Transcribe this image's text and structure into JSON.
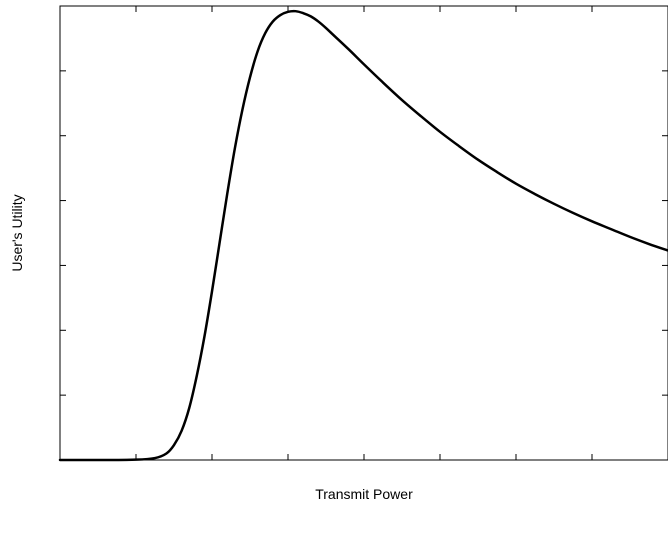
{
  "chart_data": {
    "type": "line",
    "title": "",
    "xlabel": "Transmit Power",
    "ylabel": "User's Utility",
    "xlim": [
      0,
      8
    ],
    "ylim": [
      0,
      7
    ],
    "x_tick_labels_shown": false,
    "y_tick_labels_shown": false,
    "grid": false,
    "legend": "none",
    "line_color": "#000000",
    "series": [
      {
        "x": [
          0,
          0.5,
          1.0,
          1.25,
          1.4,
          1.5,
          1.6,
          1.7,
          1.8,
          1.9,
          2.0,
          2.1,
          2.2,
          2.3,
          2.4,
          2.5,
          2.6,
          2.7,
          2.8,
          2.9,
          3.0,
          3.1,
          3.2,
          3.3,
          3.4,
          3.5,
          3.6,
          3.8,
          4.0,
          4.25,
          4.5,
          4.75,
          5.0,
          5.25,
          5.5,
          5.75,
          6.0,
          6.25,
          6.5,
          6.75,
          7.0,
          7.25,
          7.5,
          7.75,
          8.0
        ],
        "y": [
          0,
          0,
          0.005,
          0.03,
          0.1,
          0.23,
          0.45,
          0.8,
          1.3,
          1.9,
          2.6,
          3.35,
          4.1,
          4.8,
          5.4,
          5.9,
          6.3,
          6.58,
          6.76,
          6.86,
          6.91,
          6.92,
          6.89,
          6.84,
          6.76,
          6.66,
          6.55,
          6.33,
          6.1,
          5.82,
          5.55,
          5.3,
          5.06,
          4.84,
          4.63,
          4.44,
          4.26,
          4.1,
          3.95,
          3.81,
          3.68,
          3.56,
          3.44,
          3.33,
          3.23
        ]
      }
    ]
  }
}
